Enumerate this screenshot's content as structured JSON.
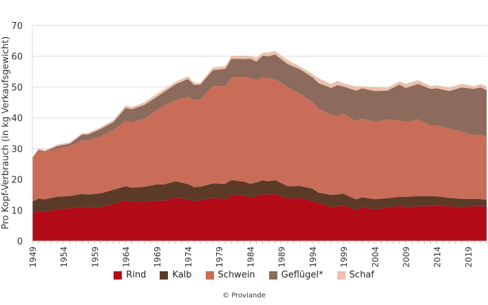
{
  "chart_data": {
    "type": "area",
    "stacked": true,
    "title": "",
    "xlabel": "",
    "ylabel": "Pro Kopf-Verbrauch (in kg Verkaufsgewicht)",
    "ylim": [
      0,
      70
    ],
    "xlim": [
      1949,
      2022
    ],
    "yticks": [
      0,
      10,
      20,
      30,
      40,
      50,
      60,
      70
    ],
    "xticks": [
      "1949",
      "1954",
      "1959",
      "1964",
      "1969",
      "1974",
      "1979",
      "1984",
      "1989",
      "1994",
      "1999",
      "2004",
      "2009",
      "2014",
      "2019"
    ],
    "grid": true,
    "legend_position": "bottom",
    "x": [
      1949,
      1950,
      1951,
      1953,
      1955,
      1957,
      1958,
      1960,
      1962,
      1964,
      1965,
      1967,
      1969,
      1970,
      1972,
      1974,
      1975,
      1976,
      1978,
      1980,
      1981,
      1983,
      1984,
      1985,
      1986,
      1987,
      1988,
      1990,
      1992,
      1994,
      1995,
      1997,
      1998,
      1999,
      2001,
      2002,
      2004,
      2006,
      2008,
      2009,
      2011,
      2013,
      2014,
      2016,
      2018,
      2020,
      2021,
      2022
    ],
    "series": [
      {
        "name": "Rind",
        "color": "#b20a17",
        "values": [
          9,
          9.7,
          9.5,
          10.2,
          10.6,
          11,
          11,
          11,
          12,
          13.2,
          12.7,
          12.6,
          13.1,
          13,
          14,
          13.5,
          13,
          13.2,
          14,
          13.6,
          15,
          14.8,
          14.2,
          14.6,
          15.2,
          15,
          15.3,
          13.8,
          13.9,
          13,
          12.3,
          11,
          11.2,
          11.5,
          10.1,
          10.9,
          10.3,
          10.8,
          11.4,
          11,
          11.2,
          11.3,
          11.5,
          11.3,
          11,
          11.3,
          11.2,
          11.2
        ]
      },
      {
        "name": "Kalb",
        "color": "#5c3a28",
        "values": [
          3.8,
          4.1,
          4.0,
          4.2,
          4.0,
          4.3,
          4.1,
          4.5,
          4.6,
          4.6,
          4.6,
          5.0,
          5.3,
          5.3,
          5.4,
          5.0,
          4.5,
          4.4,
          4.7,
          5.0,
          4.8,
          4.5,
          4.4,
          4.4,
          4.5,
          4.4,
          4.5,
          4.0,
          4.0,
          4.0,
          3.4,
          4.0,
          3.9,
          3.9,
          3.4,
          3.3,
          3.3,
          3.1,
          3.0,
          3.3,
          3.4,
          3.3,
          3.0,
          2.7,
          2.7,
          2.4,
          2.4,
          2.2
        ]
      },
      {
        "name": "Schwein",
        "color": "#c96d58",
        "values": [
          14.2,
          15.7,
          15.3,
          15.6,
          16.2,
          17.4,
          17.5,
          18.5,
          19.4,
          21.2,
          21.2,
          22.2,
          24.1,
          25.4,
          26.3,
          28.3,
          28.3,
          28.4,
          31.6,
          31.7,
          33.4,
          33.9,
          34.4,
          33.2,
          33.5,
          33.4,
          32.8,
          32.2,
          29.9,
          28.0,
          27.3,
          25.9,
          25.5,
          25.8,
          25.4,
          25.5,
          25.1,
          25.6,
          24.7,
          24.3,
          24.9,
          22.9,
          23.0,
          22.5,
          21.8,
          20.6,
          21.0,
          20.4
        ]
      },
      {
        "name": "Geflügel*",
        "color": "#8c6b5c",
        "values": [
          0,
          0.2,
          0.3,
          0.8,
          0.8,
          1.9,
          2.0,
          2.4,
          2.6,
          4.2,
          4.3,
          4.4,
          4.3,
          4.5,
          5.2,
          5.8,
          4.9,
          4.8,
          5.2,
          5.6,
          6.0,
          5.9,
          6.2,
          6.1,
          7.0,
          7.2,
          8.0,
          7.5,
          8.0,
          8.2,
          8.3,
          8.8,
          10.0,
          9.0,
          9.9,
          9.9,
          10.0,
          9.3,
          11.7,
          11.1,
          11.5,
          11.9,
          12.1,
          12.2,
          14.4,
          15.1,
          15.3,
          15.2
        ]
      },
      {
        "name": "Schaf",
        "color": "#ecc0ac",
        "values": [
          0.2,
          0.3,
          0.4,
          0.5,
          0.4,
          0.4,
          0.5,
          0.6,
          0.6,
          0.8,
          0.7,
          0.8,
          1.0,
          0.8,
          0.8,
          0.9,
          0.8,
          0.5,
          0.8,
          0.9,
          1.0,
          1.1,
          0.9,
          1.2,
          1.0,
          1.2,
          1.1,
          1.3,
          0.9,
          1.1,
          1.5,
          1.3,
          1.4,
          1.0,
          1.4,
          0.7,
          1.2,
          1.0,
          1.0,
          1.3,
          1.2,
          0.9,
          1.0,
          1.1,
          1.1,
          0.9,
          1.1,
          1.2
        ]
      }
    ]
  },
  "footer": {
    "copyright": "© Proviande"
  }
}
